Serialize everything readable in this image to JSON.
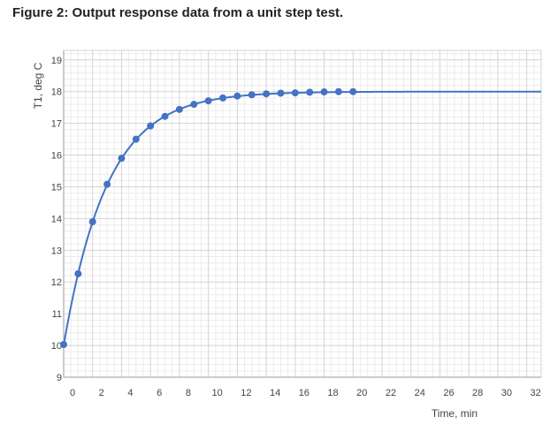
{
  "figure": {
    "title": "Figure 2: Output response data from a unit step test."
  },
  "chart_data": {
    "type": "line",
    "title": "Figure 2: Output response data from a unit step test.",
    "xlabel": "Time, min",
    "ylabel": "T1, deg C",
    "xlim": [
      0,
      33
    ],
    "ylim": [
      9,
      19.3
    ],
    "xticks": [
      0,
      2,
      4,
      6,
      8,
      10,
      12,
      14,
      16,
      18,
      20,
      22,
      24,
      26,
      28,
      30,
      32
    ],
    "yticks": [
      9,
      10,
      11,
      12,
      13,
      14,
      15,
      16,
      17,
      18,
      19
    ],
    "grid": true,
    "line_color": "#4472c4",
    "marker_color": "#4472c4",
    "series": [
      {
        "x": [
          0,
          1,
          2,
          3,
          4,
          5,
          6,
          7,
          8,
          9,
          10,
          11,
          12,
          13,
          14,
          15,
          16,
          17,
          18,
          19,
          20
        ],
        "y": [
          10.03,
          12.26,
          13.9,
          15.08,
          15.9,
          16.5,
          16.92,
          17.22,
          17.44,
          17.6,
          17.71,
          17.8,
          17.86,
          17.9,
          17.93,
          17.95,
          17.96,
          17.98,
          17.99,
          18.0,
          18.0
        ]
      }
    ],
    "model": {
      "initial": 10,
      "final": 18,
      "time_constant_min": 3,
      "x_end": 33
    }
  }
}
